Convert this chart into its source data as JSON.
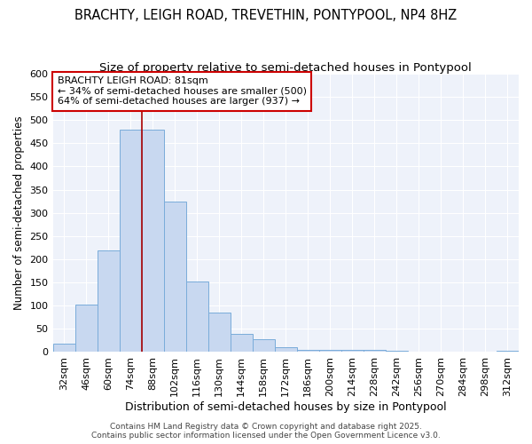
{
  "title": "BRACHTY, LEIGH ROAD, TREVETHIN, PONTYPOOL, NP4 8HZ",
  "subtitle": "Size of property relative to semi-detached houses in Pontypool",
  "xlabel": "Distribution of semi-detached houses by size in Pontypool",
  "ylabel": "Number of semi-detached properties",
  "categories": [
    "32sqm",
    "46sqm",
    "60sqm",
    "74sqm",
    "88sqm",
    "102sqm",
    "116sqm",
    "130sqm",
    "144sqm",
    "158sqm",
    "172sqm",
    "186sqm",
    "200sqm",
    "214sqm",
    "228sqm",
    "242sqm",
    "256sqm",
    "270sqm",
    "284sqm",
    "298sqm",
    "312sqm"
  ],
  "values": [
    18,
    103,
    220,
    480,
    480,
    325,
    152,
    85,
    40,
    27,
    10,
    5,
    5,
    4,
    4,
    2,
    1,
    1,
    0,
    0,
    3
  ],
  "bar_color": "#c8d8f0",
  "bar_edge_color": "#7aacda",
  "bar_linewidth": 0.7,
  "vline_x_index": 4,
  "vline_color": "#aa0000",
  "vline_linewidth": 1.2,
  "annotation_title": "BRACHTY LEIGH ROAD: 81sqm",
  "annotation_line1": "← 34% of semi-detached houses are smaller (500)",
  "annotation_line2": "64% of semi-detached houses are larger (937) →",
  "annotation_box_color": "#ffffff",
  "annotation_border_color": "#cc0000",
  "ylim": [
    0,
    600
  ],
  "yticks": [
    0,
    50,
    100,
    150,
    200,
    250,
    300,
    350,
    400,
    450,
    500,
    550,
    600
  ],
  "title_fontsize": 10.5,
  "subtitle_fontsize": 9.5,
  "xlabel_fontsize": 9,
  "ylabel_fontsize": 8.5,
  "tick_fontsize": 8,
  "annotation_fontsize": 8,
  "footer": "Contains HM Land Registry data © Crown copyright and database right 2025.\nContains public sector information licensed under the Open Government Licence v3.0.",
  "footer_fontsize": 6.5,
  "background_color": "#eef2fa",
  "grid_color": "#ffffff",
  "figure_bg": "#ffffff"
}
